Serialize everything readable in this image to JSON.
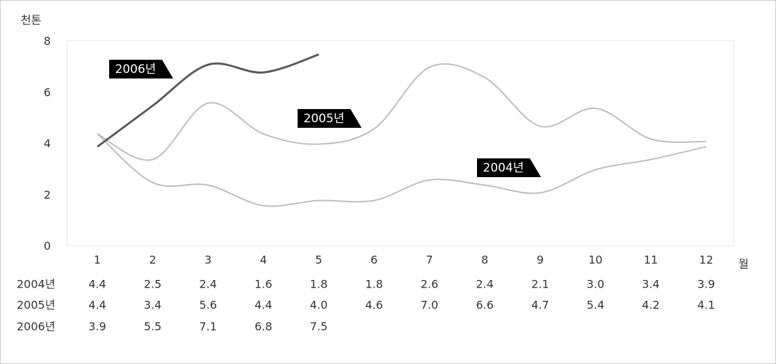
{
  "chart_data": {
    "type": "line",
    "y_label": "천톤",
    "x_label": "월",
    "categories": [
      "1",
      "2",
      "3",
      "4",
      "5",
      "6",
      "7",
      "8",
      "9",
      "10",
      "11",
      "12"
    ],
    "ylim": [
      0,
      8
    ],
    "yticks": [
      0,
      2,
      4,
      6,
      8
    ],
    "series": [
      {
        "name": "2004년",
        "color": "#bdbdbd",
        "values": [
          4.4,
          2.5,
          2.4,
          1.6,
          1.8,
          1.8,
          2.6,
          2.4,
          2.1,
          3.0,
          3.4,
          3.9
        ],
        "value_labels": [
          "4.4",
          "2.5",
          "2.4",
          "1.6",
          "1.8",
          "1.8",
          "2.6",
          "2.4",
          "2.1",
          "3.0",
          "3.4",
          "3.9"
        ]
      },
      {
        "name": "2005년",
        "color": "#bdbdbd",
        "values": [
          4.4,
          3.4,
          5.6,
          4.4,
          4.0,
          4.6,
          7.0,
          6.6,
          4.7,
          5.4,
          4.2,
          4.1
        ],
        "value_labels": [
          "4.4",
          "3.4",
          "5.6",
          "4.4",
          "4.0",
          "4.6",
          "7.0",
          "6.6",
          "4.7",
          "5.4",
          "4.2",
          "4.1"
        ]
      },
      {
        "name": "2006년",
        "color": "#5a5a5a",
        "values": [
          3.9,
          5.5,
          7.1,
          6.8,
          7.5,
          null,
          null,
          null,
          null,
          null,
          null,
          null
        ],
        "value_labels": [
          "3.9",
          "5.5",
          "7.1",
          "6.8",
          "7.5",
          null,
          null,
          null,
          null,
          null,
          null,
          null
        ]
      }
    ]
  }
}
